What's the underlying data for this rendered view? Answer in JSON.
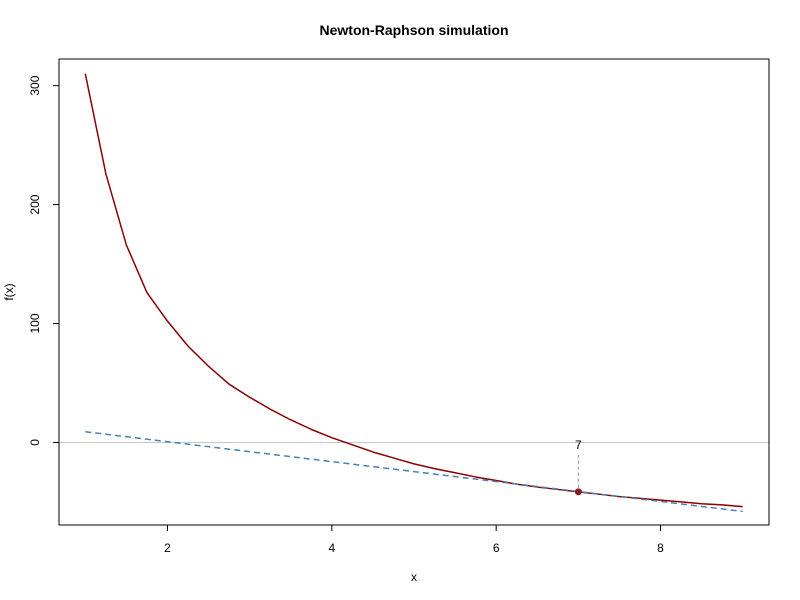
{
  "chart_data": {
    "type": "line",
    "title": "Newton-Raphson simulation",
    "xlabel": "x",
    "ylabel": "f(x)",
    "xlim": [
      0.68,
      9.32
    ],
    "ylim": [
      -69.4,
      322.4
    ],
    "xticks": [
      2,
      4,
      6,
      8
    ],
    "yticks": [
      0,
      100,
      200,
      300
    ],
    "grid": false,
    "series": [
      {
        "role": "curve",
        "color": "#8b0000",
        "style": "solid",
        "x": [
          1.0,
          1.25,
          1.5,
          1.75,
          2.0,
          2.25,
          2.5,
          2.75,
          3.0,
          3.25,
          3.5,
          3.75,
          4.0,
          4.25,
          4.5,
          4.75,
          5.0,
          5.25,
          5.5,
          5.75,
          6.0,
          6.25,
          6.5,
          6.75,
          7.0,
          7.25,
          7.5,
          7.75,
          8.0,
          8.25,
          8.5,
          8.75,
          9.0
        ],
        "y": [
          310,
          226,
          166,
          126,
          102,
          81,
          64,
          49,
          38,
          28,
          19,
          11,
          4,
          -2,
          -8,
          -13,
          -18,
          -22,
          -25.5,
          -29,
          -32,
          -35,
          -37.5,
          -39.5,
          -41.5,
          -43.5,
          -45.5,
          -47,
          -48.5,
          -50,
          -51.5,
          -52.5,
          -54
        ]
      },
      {
        "role": "tangent",
        "color": "#4682b4",
        "style": "dashed",
        "x": [
          1.0,
          9.0
        ],
        "y": [
          9,
          -58
        ]
      }
    ],
    "reference_line": {
      "y": 0,
      "color": "#c8c8c8"
    },
    "point": {
      "x": 7,
      "y": -41.5,
      "color": "#8b1a1a"
    },
    "annotation": {
      "label": "7",
      "x": 7,
      "y": -7
    }
  }
}
